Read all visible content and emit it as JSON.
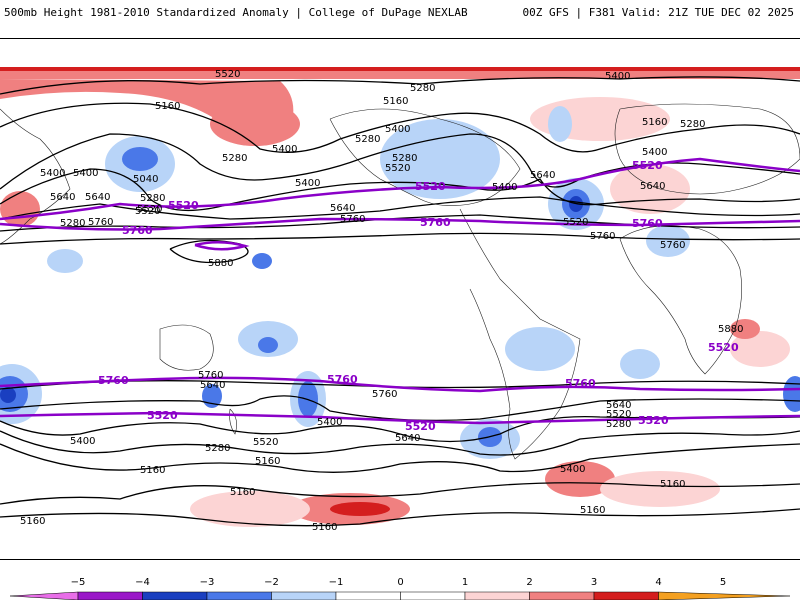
{
  "header": {
    "title": "500mb Height 1981-2010 Standardized Anomaly | College of DuPage NEXLAB",
    "run_info": "00Z GFS | F381 Valid: 21Z TUE DEC 02 2025"
  },
  "map": {
    "black_contour_labels": [
      "5520",
      "5400",
      "5280",
      "5160",
      "5400",
      "5280",
      "5160",
      "5280",
      "5040",
      "5400",
      "5280",
      "5520",
      "5640",
      "5400",
      "5520",
      "5640",
      "5760",
      "5400",
      "5640",
      "5760",
      "5880",
      "5280",
      "5520",
      "5400",
      "5640",
      "5520",
      "5760",
      "5400",
      "5280",
      "5760",
      "5640",
      "5400",
      "5280",
      "5160",
      "5880",
      "5760",
      "5640",
      "5760",
      "5640",
      "5520",
      "5280",
      "5400",
      "5520",
      "5640",
      "5280",
      "5160",
      "5400",
      "5160",
      "5160",
      "5160",
      "5160",
      "5400",
      "5160",
      "5160"
    ],
    "purple_contour_labels": [
      "5520",
      "5760",
      "5520",
      "5520",
      "5760",
      "5760",
      "5520",
      "5760",
      "5760",
      "5520",
      "5520",
      "5760",
      "5520"
    ]
  },
  "colorbar": {
    "ticks": [
      "−5",
      "−4",
      "−3",
      "−2",
      "−1",
      "0",
      "1",
      "2",
      "3",
      "4",
      "5"
    ],
    "colors": [
      "#e86ee8",
      "#9a18c8",
      "#1a3fc0",
      "#4a78e8",
      "#b8d4f8",
      "#ffffff",
      "#ffffff",
      "#fcd4d4",
      "#f08080",
      "#d41e1e",
      "#f4a020"
    ]
  }
}
